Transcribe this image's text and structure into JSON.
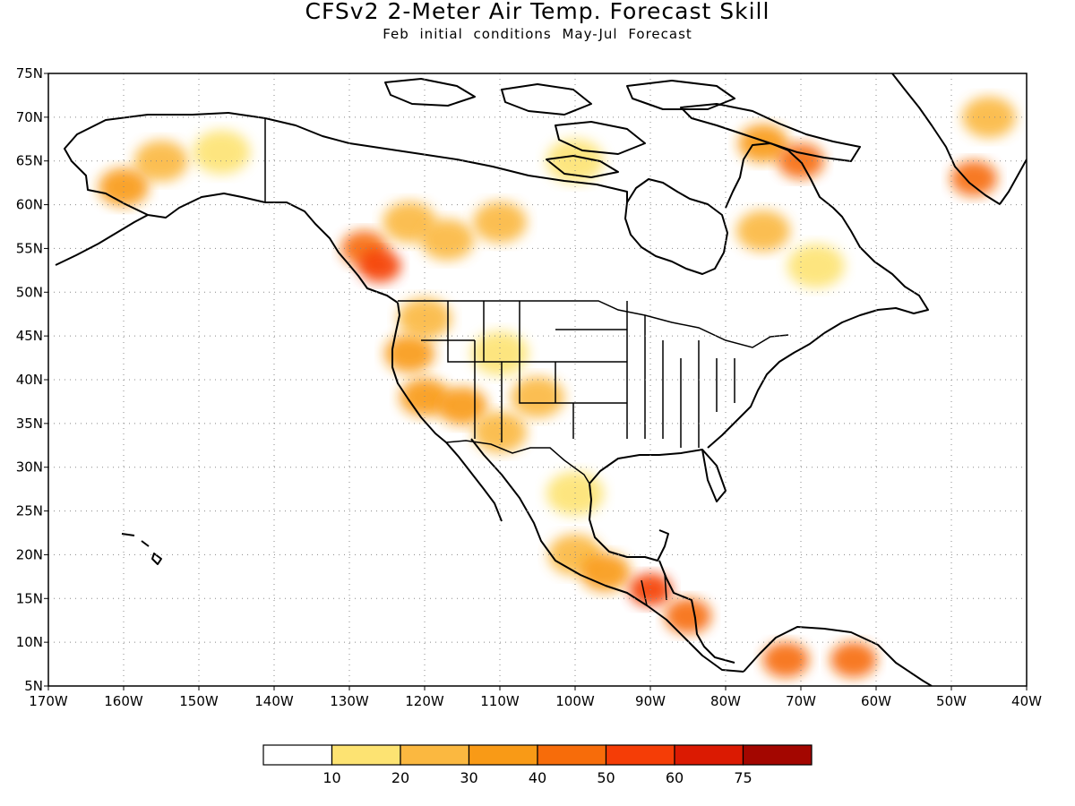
{
  "title": "CFSv2 2-Meter Air Temp. Forecast Skill",
  "subtitle": "Feb initial conditions   May-Jul Forecast",
  "map": {
    "lon_range": [
      -170,
      -40
    ],
    "lat_range": [
      5,
      75
    ],
    "grid": true,
    "lon_ticks": [
      "170W",
      "160W",
      "150W",
      "140W",
      "130W",
      "120W",
      "110W",
      "100W",
      "90W",
      "80W",
      "70W",
      "60W",
      "50W",
      "40W"
    ],
    "lat_ticks": [
      "5N",
      "10N",
      "15N",
      "20N",
      "25N",
      "30N",
      "35N",
      "40N",
      "45N",
      "50N",
      "55N",
      "60N",
      "65N",
      "70N",
      "75N"
    ]
  },
  "colorbar": {
    "colors": [
      "#ffffff",
      "#fde372",
      "#fbb840",
      "#f99a16",
      "#f76c0a",
      "#f53d06",
      "#db1a02",
      "#a30600"
    ],
    "labels": [
      "10",
      "20",
      "30",
      "40",
      "50",
      "60",
      "75"
    ]
  },
  "skill_regions": [
    {
      "lon": -155,
      "lat": 65,
      "level": 2
    },
    {
      "lon": -147,
      "lat": 66,
      "level": 1
    },
    {
      "lon": -160,
      "lat": 62,
      "level": 3
    },
    {
      "lon": -128,
      "lat": 55,
      "level": 4
    },
    {
      "lon": -126,
      "lat": 53,
      "level": 5
    },
    {
      "lon": -122,
      "lat": 58,
      "level": 2
    },
    {
      "lon": -117,
      "lat": 56,
      "level": 2
    },
    {
      "lon": -110,
      "lat": 58,
      "level": 2
    },
    {
      "lon": -122,
      "lat": 43,
      "level": 3
    },
    {
      "lon": -120,
      "lat": 38,
      "level": 3
    },
    {
      "lon": -115,
      "lat": 37,
      "level": 3
    },
    {
      "lon": -110,
      "lat": 34,
      "level": 2
    },
    {
      "lon": -110,
      "lat": 43,
      "level": 1
    },
    {
      "lon": -105,
      "lat": 38,
      "level": 2
    },
    {
      "lon": -120,
      "lat": 47,
      "level": 2
    },
    {
      "lon": -100,
      "lat": 27,
      "level": 1
    },
    {
      "lon": -100,
      "lat": 20,
      "level": 2
    },
    {
      "lon": -96,
      "lat": 18,
      "level": 3
    },
    {
      "lon": -90,
      "lat": 16,
      "level": 5
    },
    {
      "lon": -85,
      "lat": 13,
      "level": 4
    },
    {
      "lon": -72,
      "lat": 8,
      "level": 4
    },
    {
      "lon": -63,
      "lat": 8,
      "level": 4
    },
    {
      "lon": -75,
      "lat": 57,
      "level": 2
    },
    {
      "lon": -68,
      "lat": 53,
      "level": 1
    },
    {
      "lon": -75,
      "lat": 67,
      "level": 3
    },
    {
      "lon": -70,
      "lat": 65,
      "level": 4
    },
    {
      "lon": -45,
      "lat": 70,
      "level": 2
    },
    {
      "lon": -47,
      "lat": 63,
      "level": 4
    },
    {
      "lon": -100,
      "lat": 65,
      "level": 1
    }
  ]
}
